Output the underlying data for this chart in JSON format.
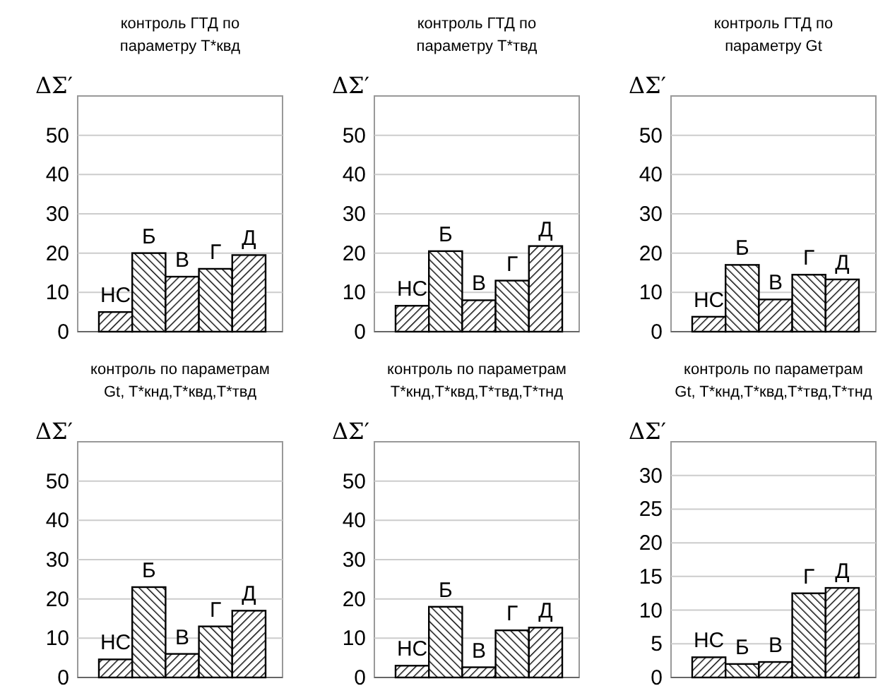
{
  "chart_data": [
    {
      "type": "bar",
      "title": "контроль ГТД по\nпараметру T*квд",
      "ylabel": "ΔΣ′",
      "categories": [
        "НС",
        "Б",
        "В",
        "Г",
        "Д"
      ],
      "values": [
        5,
        20,
        14,
        16,
        19.5
      ],
      "color": "#000000",
      "ylim": [
        0,
        60
      ],
      "yticks": [
        0,
        10,
        20,
        30,
        40,
        50
      ],
      "grid": "y",
      "tick_labels": "y"
    },
    {
      "type": "bar",
      "title": "контроль ГТД по\nпараметру T*твд",
      "ylabel": "ΔΣ′",
      "categories": [
        "НС",
        "Б",
        "В",
        "Г",
        "Д"
      ],
      "values": [
        6.6,
        20.5,
        8,
        13,
        21.8
      ],
      "color": "#000000",
      "ylim": [
        0,
        60
      ],
      "yticks": [
        0,
        10,
        20,
        30,
        40,
        50
      ],
      "grid": "y",
      "tick_labels": "y"
    },
    {
      "type": "bar",
      "title": "контроль ГТД по\nпараметру Gt",
      "ylabel": "ΔΣ′",
      "categories": [
        "НС",
        "Б",
        "В",
        "Г",
        "Д"
      ],
      "values": [
        3.8,
        17,
        8.2,
        14.5,
        13.3
      ],
      "color": "#000000",
      "ylim": [
        0,
        60
      ],
      "yticks": [
        0,
        10,
        20,
        30,
        40,
        50
      ],
      "grid": "y",
      "tick_labels": "y"
    },
    {
      "type": "bar",
      "title": "контроль по параметрам\nGt, T*кнд,T*квд,T*твд",
      "ylabel": "ΔΣ′",
      "categories": [
        "НС",
        "Б",
        "В",
        "Г",
        "Д"
      ],
      "values": [
        4.6,
        23,
        6,
        13,
        17
      ],
      "color": "#000000",
      "ylim": [
        0,
        60
      ],
      "yticks": [
        0,
        10,
        20,
        30,
        40,
        50
      ],
      "grid": "y",
      "tick_labels": "y"
    },
    {
      "type": "bar",
      "title": "контроль по параметрам\nT*кнд,T*квд,T*твд,T*тнд",
      "ylabel": "ΔΣ′",
      "categories": [
        "НС",
        "Б",
        "В",
        "Г",
        "Д"
      ],
      "values": [
        3,
        18,
        2.6,
        12,
        12.7
      ],
      "color": "#000000",
      "ylim": [
        0,
        60
      ],
      "yticks": [
        0,
        10,
        20,
        30,
        40,
        50
      ],
      "grid": "y",
      "tick_labels": "y"
    },
    {
      "type": "bar",
      "title": "контроль по параметрам\nGt, T*кнд,T*квд,T*твд,T*тнд",
      "ylabel": "ΔΣ′",
      "categories": [
        "НС",
        "Б",
        "В",
        "Г",
        "Д"
      ],
      "values": [
        3,
        2,
        2.3,
        12.5,
        13.3
      ],
      "color": "#000000",
      "ylim": [
        0,
        35
      ],
      "yticks": [
        0,
        5,
        10,
        15,
        20,
        25,
        30
      ],
      "grid": "y",
      "tick_labels": "y"
    }
  ]
}
